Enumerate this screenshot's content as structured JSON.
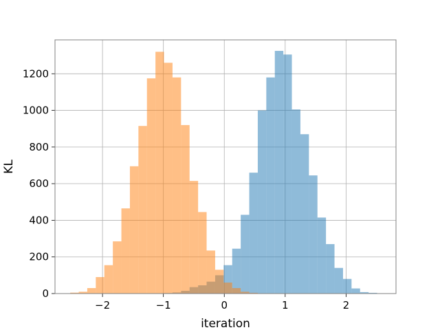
{
  "chart_data": {
    "type": "histogram",
    "title": "",
    "xlabel": "iteration",
    "ylabel": "KL",
    "xlim": [
      -2.78,
      2.82
    ],
    "ylim": [
      0,
      1385
    ],
    "xticks": [
      -2,
      -1,
      0,
      1,
      2
    ],
    "yticks": [
      0,
      200,
      400,
      600,
      800,
      1000,
      1200
    ],
    "grid": true,
    "legend": "none",
    "series": [
      {
        "color": "#1f77b4",
        "alpha": 0.5,
        "bins": [
          {
            "x0": -0.99,
            "x1": -0.85,
            "count": 3
          },
          {
            "x0": -0.85,
            "x1": -0.71,
            "count": 6
          },
          {
            "x0": -0.71,
            "x1": -0.57,
            "count": 15
          },
          {
            "x0": -0.57,
            "x1": -0.43,
            "count": 35
          },
          {
            "x0": -0.43,
            "x1": -0.29,
            "count": 45
          },
          {
            "x0": -0.29,
            "x1": -0.15,
            "count": 65
          },
          {
            "x0": -0.15,
            "x1": -0.01,
            "count": 100
          },
          {
            "x0": -0.01,
            "x1": 0.13,
            "count": 155
          },
          {
            "x0": 0.13,
            "x1": 0.27,
            "count": 245
          },
          {
            "x0": 0.27,
            "x1": 0.41,
            "count": 430
          },
          {
            "x0": 0.41,
            "x1": 0.55,
            "count": 660
          },
          {
            "x0": 0.55,
            "x1": 0.69,
            "count": 1000
          },
          {
            "x0": 0.69,
            "x1": 0.83,
            "count": 1180
          },
          {
            "x0": 0.83,
            "x1": 0.97,
            "count": 1325
          },
          {
            "x0": 0.97,
            "x1": 1.11,
            "count": 1305
          },
          {
            "x0": 1.11,
            "x1": 1.25,
            "count": 1005
          },
          {
            "x0": 1.25,
            "x1": 1.39,
            "count": 870
          },
          {
            "x0": 1.39,
            "x1": 1.53,
            "count": 645
          },
          {
            "x0": 1.53,
            "x1": 1.67,
            "count": 415
          },
          {
            "x0": 1.67,
            "x1": 1.81,
            "count": 270
          },
          {
            "x0": 1.81,
            "x1": 1.95,
            "count": 140
          },
          {
            "x0": 1.95,
            "x1": 2.09,
            "count": 80
          },
          {
            "x0": 2.09,
            "x1": 2.23,
            "count": 28
          },
          {
            "x0": 2.23,
            "x1": 2.37,
            "count": 8
          },
          {
            "x0": 2.37,
            "x1": 2.51,
            "count": 4
          }
        ]
      },
      {
        "color": "#ff7f0e",
        "alpha": 0.5,
        "bins": [
          {
            "x0": -2.53,
            "x1": -2.39,
            "count": 5
          },
          {
            "x0": -2.39,
            "x1": -2.25,
            "count": 10
          },
          {
            "x0": -2.25,
            "x1": -2.11,
            "count": 30
          },
          {
            "x0": -2.11,
            "x1": -1.97,
            "count": 90
          },
          {
            "x0": -1.97,
            "x1": -1.83,
            "count": 155
          },
          {
            "x0": -1.83,
            "x1": -1.69,
            "count": 285
          },
          {
            "x0": -1.69,
            "x1": -1.55,
            "count": 465
          },
          {
            "x0": -1.55,
            "x1": -1.41,
            "count": 695
          },
          {
            "x0": -1.41,
            "x1": -1.27,
            "count": 915
          },
          {
            "x0": -1.27,
            "x1": -1.13,
            "count": 1175
          },
          {
            "x0": -1.13,
            "x1": -0.99,
            "count": 1320
          },
          {
            "x0": -0.99,
            "x1": -0.85,
            "count": 1260
          },
          {
            "x0": -0.85,
            "x1": -0.71,
            "count": 1180
          },
          {
            "x0": -0.71,
            "x1": -0.57,
            "count": 920
          },
          {
            "x0": -0.57,
            "x1": -0.43,
            "count": 615
          },
          {
            "x0": -0.43,
            "x1": -0.29,
            "count": 445
          },
          {
            "x0": -0.29,
            "x1": -0.15,
            "count": 235
          },
          {
            "x0": -0.15,
            "x1": -0.01,
            "count": 130
          },
          {
            "x0": -0.01,
            "x1": 0.13,
            "count": 60
          },
          {
            "x0": 0.13,
            "x1": 0.27,
            "count": 30
          },
          {
            "x0": 0.27,
            "x1": 0.41,
            "count": 10
          },
          {
            "x0": 0.41,
            "x1": 0.55,
            "count": 4
          }
        ]
      }
    ]
  }
}
